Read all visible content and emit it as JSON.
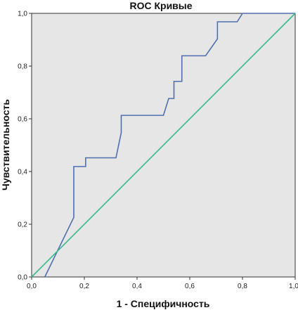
{
  "chart_data": {
    "type": "line",
    "title": "ROC Кривые",
    "xlabel": "1 - Специфичность",
    "ylabel": "Чувствительность",
    "xlim": [
      0,
      1
    ],
    "ylim": [
      0,
      1
    ],
    "x_ticks": [
      "0,0",
      "0,2",
      "0,4",
      "0,6",
      "0,8",
      "1,0"
    ],
    "y_ticks": [
      "0,0",
      "0,2",
      "0,4",
      "0,6",
      "0,8",
      "1,0"
    ],
    "grid": false,
    "legend": "none",
    "background_color": "#e6e6e6",
    "series": [
      {
        "color": "#4f6fb0",
        "points": [
          [
            0.05,
            0.0
          ],
          [
            0.16,
            0.226
          ],
          [
            0.16,
            0.419
          ],
          [
            0.205,
            0.419
          ],
          [
            0.205,
            0.452
          ],
          [
            0.32,
            0.452
          ],
          [
            0.34,
            0.548
          ],
          [
            0.34,
            0.613
          ],
          [
            0.5,
            0.613
          ],
          [
            0.52,
            0.677
          ],
          [
            0.54,
            0.677
          ],
          [
            0.54,
            0.742
          ],
          [
            0.57,
            0.742
          ],
          [
            0.57,
            0.839
          ],
          [
            0.66,
            0.839
          ],
          [
            0.705,
            0.903
          ],
          [
            0.705,
            0.968
          ],
          [
            0.78,
            0.968
          ],
          [
            0.8,
            1.0
          ],
          [
            1.0,
            1.0
          ]
        ]
      },
      {
        "color": "#33bb88",
        "points": [
          [
            0.0,
            0.0
          ],
          [
            1.0,
            1.0
          ]
        ]
      }
    ]
  }
}
